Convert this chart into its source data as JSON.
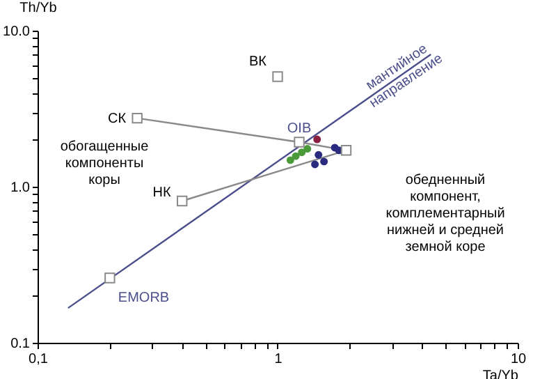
{
  "chart_data": {
    "type": "scatter",
    "xlabel": "Ta/Yb",
    "ylabel": "Th/Yb",
    "log": "xy",
    "grid": false,
    "xlim": [
      0.1,
      10
    ],
    "ylim": [
      0.1,
      10
    ],
    "xticks": [
      {
        "value": 0.1,
        "label": "0,1"
      },
      {
        "value": 0.2,
        "label": null
      },
      {
        "value": 0.3,
        "label": null
      },
      {
        "value": 0.4,
        "label": null
      },
      {
        "value": 0.5,
        "label": null
      },
      {
        "value": 0.6,
        "label": null
      },
      {
        "value": 0.7,
        "label": null
      },
      {
        "value": 0.8,
        "label": null
      },
      {
        "value": 0.9,
        "label": null
      },
      1,
      {
        "value": 2,
        "label": null
      },
      {
        "value": 3,
        "label": null
      },
      {
        "value": 4,
        "label": null
      },
      {
        "value": 5,
        "label": null
      },
      {
        "value": 6,
        "label": null
      },
      {
        "value": 7,
        "label": null
      },
      {
        "value": 8,
        "label": null
      },
      {
        "value": 9,
        "label": null
      },
      10
    ],
    "yticks": [
      {
        "value": 0.1,
        "label": "0.1"
      },
      {
        "value": 0.2,
        "label": null
      },
      {
        "value": 0.3,
        "label": null
      },
      {
        "value": 0.4,
        "label": null
      },
      {
        "value": 0.5,
        "label": null
      },
      {
        "value": 0.6,
        "label": null
      },
      {
        "value": 0.7,
        "label": null
      },
      {
        "value": 0.8,
        "label": null
      },
      {
        "value": 0.9,
        "label": null
      },
      {
        "value": 1,
        "label": "1.0"
      },
      {
        "value": 2,
        "label": null
      },
      {
        "value": 3,
        "label": null
      },
      {
        "value": 4,
        "label": null
      },
      {
        "value": 5,
        "label": null
      },
      {
        "value": 6,
        "label": null
      },
      {
        "value": 7,
        "label": null
      },
      {
        "value": 8,
        "label": null
      },
      {
        "value": 9,
        "label": null
      },
      {
        "value": 10,
        "label": "10.0"
      }
    ],
    "series": [
      {
        "type": "line",
        "color": "#4b4f8c",
        "x": [
          0.134,
          4.35
        ],
        "values": [
          0.167,
          7.05
        ],
        "marker": "none"
      },
      {
        "type": "line",
        "color": "#8a8a8a",
        "x": [
          0.26,
          1.23
        ],
        "values": [
          2.75,
          1.93
        ],
        "marker": "none"
      },
      {
        "type": "line",
        "color": "#8a8a8a",
        "x": [
          1.23,
          1.93
        ],
        "values": [
          1.93,
          1.71
        ],
        "marker": "none"
      },
      {
        "type": "line",
        "color": "#8a8a8a",
        "x": [
          0.4,
          1.93
        ],
        "values": [
          0.81,
          1.71
        ],
        "marker": "none"
      },
      {
        "type": "scatter",
        "color": "#4a9a3a",
        "marker": "circle",
        "x": [
          1.13,
          1.19,
          1.26,
          1.33
        ],
        "values": [
          1.48,
          1.57,
          1.66,
          1.75
        ]
      },
      {
        "type": "scatter",
        "color": "#2a2a80",
        "marker": "circle",
        "x": [
          1.48,
          1.56,
          1.73,
          1.8,
          1.43
        ],
        "values": [
          1.6,
          1.45,
          1.78,
          1.71,
          1.39
        ]
      },
      {
        "type": "scatter",
        "color": "#8b2040",
        "marker": "circle",
        "x": [
          1.46
        ],
        "values": [
          2.01
        ]
      },
      {
        "type": "scatter",
        "color": "#8a8a8a",
        "marker": "square",
        "x": [
          1.0,
          0.26,
          1.23,
          0.4,
          0.2,
          1.93
        ],
        "values": [
          5.07,
          2.75,
          1.93,
          0.81,
          0.26,
          1.71
        ]
      }
    ],
    "annotations": [
      {
        "text": "ВК",
        "x": 1.0,
        "y": 5.07
      },
      {
        "text": "СК",
        "x": 0.26,
        "y": 2.75
      },
      {
        "text": "OIB",
        "x": 1.23,
        "y": 1.93
      },
      {
        "text": "НК",
        "x": 0.4,
        "y": 0.81
      },
      {
        "text": "EMORB",
        "x": 0.2,
        "y": 0.26
      },
      "обогащенные\nкомпоненты\nкоры",
      "обедненный\nкомпонент,\nкомплементарный\nнижней и средней\nземной коре",
      "мантийное\nнаправление"
    ]
  }
}
